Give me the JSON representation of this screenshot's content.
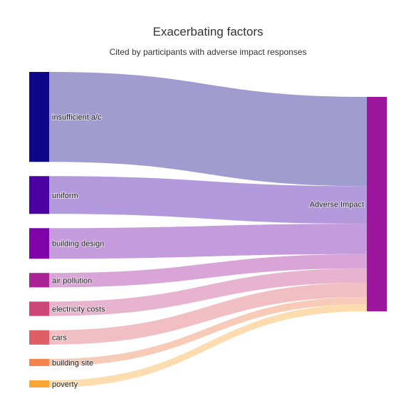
{
  "chart_data": {
    "type": "sankey",
    "title": "Exacerbating factors",
    "subtitle": "Cited by participants with adverse impact responses",
    "target": {
      "label": "Adverse Impact",
      "color": "#9C179E"
    },
    "sources": [
      {
        "label": "insufficient a/c",
        "value": 50,
        "color": "#0D0887",
        "link_color": "#A09CD0"
      },
      {
        "label": "uniform",
        "value": 21,
        "color": "#4C02A1",
        "link_color": "#B39ADC"
      },
      {
        "label": "building design",
        "value": 17,
        "color": "#7E03A8",
        "link_color": "#C49CDE"
      },
      {
        "label": "air pollution",
        "value": 8,
        "color": "#A92395",
        "link_color": "#D9A5D8"
      },
      {
        "label": "electricity costs",
        "value": 8,
        "color": "#CC4778",
        "link_color": "#E8B3CE"
      },
      {
        "label": "cars",
        "value": 8,
        "color": "#DE5F65",
        "link_color": "#F1BFC3"
      },
      {
        "label": "building site",
        "value": 4,
        "color": "#F2844B",
        "link_color": "#F8CAB8"
      },
      {
        "label": "poverty",
        "value": 4,
        "color": "#FCA636",
        "link_color": "#FDDDB0"
      }
    ]
  }
}
